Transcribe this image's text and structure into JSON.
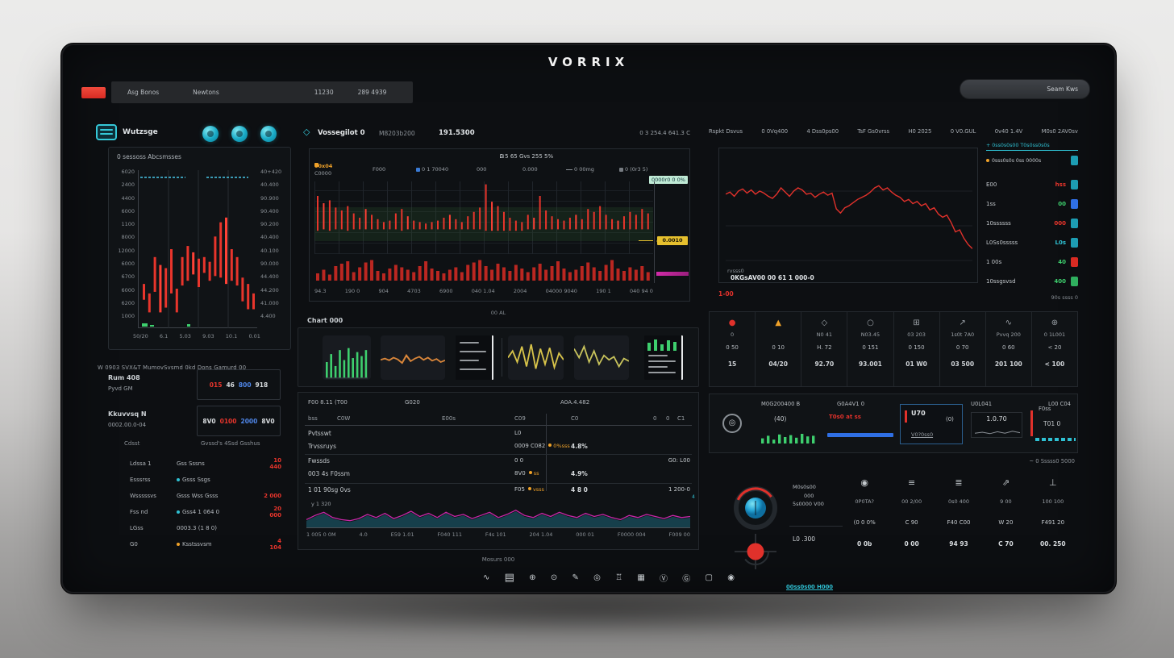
{
  "colors": {
    "red": "#e8352c",
    "bright_red": "#ff4136",
    "teal": "#2fc1d3",
    "blue": "#2f6fe4",
    "light_blue": "#4f86e8",
    "orange": "#f0a229",
    "yellow": "#e6c02e",
    "magenta": "#c827a8",
    "green": "#3ecf6e",
    "cyan_line": "#49c8e8"
  },
  "brand": "VORRIX",
  "topnav": {
    "items": [
      "Asg Bonos",
      "Newtons",
      "11230",
      "289 4939"
    ],
    "search": "Seam Kws"
  },
  "sidebar": {
    "title": "Wutzsge",
    "action_icons": [
      "pie-chart-icon",
      "clock-icon",
      "settings-icon"
    ],
    "panel_title": "0 sessoss Abcsmsses",
    "chart": {
      "type": "bar",
      "y_left": [
        "6020",
        "2400",
        "4400",
        "6000",
        "1100",
        "8000",
        "12000",
        "6000",
        "6700",
        "6000",
        "6200",
        "1000"
      ],
      "y_right": [
        "40+420",
        "40.400",
        "90.900",
        "90.400",
        "90.200",
        "40.400",
        "40.100",
        "90.000",
        "44.400",
        "44.200",
        "41.000",
        "4.400"
      ],
      "x": [
        "50/20",
        "6.1",
        "5.03",
        "9.03",
        "10.1",
        "0.01"
      ],
      "bars": [
        [
          72,
          10
        ],
        [
          78,
          12
        ],
        [
          55,
          22
        ],
        [
          60,
          30
        ],
        [
          62,
          25
        ],
        [
          50,
          28
        ],
        [
          75,
          15
        ],
        [
          55,
          18
        ],
        [
          48,
          22
        ],
        [
          52,
          14
        ],
        [
          56,
          18
        ],
        [
          55,
          10
        ],
        [
          58,
          12
        ],
        [
          42,
          25
        ],
        [
          33,
          35
        ],
        [
          30,
          42
        ],
        [
          50,
          20
        ],
        [
          55,
          18
        ],
        [
          68,
          15
        ],
        [
          72,
          16
        ],
        [
          78,
          10
        ]
      ]
    },
    "summary": "W 0903 SVX&T MumovSvsmd 0kd  Dons Gamurd 00",
    "stat_boxes": [
      {
        "label": "Rum 408",
        "sublabel": "Pyvd GM",
        "parts": [
          {
            "t": "015",
            "c": "red"
          },
          {
            "t": "46",
            "c": "bright"
          },
          {
            "t": "800",
            "c": "blue"
          },
          {
            "t": "918",
            "c": "bright"
          }
        ]
      },
      {
        "label": "Kkuvvsq N",
        "sublabel": "0002.00.0-04",
        "parts": [
          {
            "t": "8V0",
            "c": "bright"
          },
          {
            "t": "0100",
            "c": "red"
          },
          {
            "t": "2000",
            "c": "blue"
          },
          {
            "t": "8V0",
            "c": "bright"
          }
        ]
      }
    ],
    "list": {
      "col1": "Cdsst",
      "col2": "Gvssd's 4Ssd Gsshus",
      "rows": [
        {
          "label": "Ldssa 1",
          "dot": "",
          "mid": "Gss Sssns",
          "value": "10 440",
          "vc": "red"
        },
        {
          "label": "Esssrss",
          "dot": "teal",
          "mid": "Gsss Ssgs",
          "value": "",
          "vc": ""
        },
        {
          "label": "Wsssssvs",
          "dot": "",
          "mid": "Gsss Wss Gsss",
          "value": "2 000",
          "vc": "red"
        },
        {
          "label": "Fss nd",
          "dot": "teal",
          "mid": "Gss4 1 064 0",
          "value": "20 000",
          "vc": "red"
        },
        {
          "label": "LGss",
          "dot": "",
          "mid": "0003.3 (1 8 0)",
          "value": "",
          "vc": ""
        },
        {
          "label": "G0",
          "dot": "orange",
          "mid": "Ksstssvsm",
          "value": "4 104",
          "vc": "red"
        }
      ]
    }
  },
  "center": {
    "symbol": "Vossegilot 0",
    "code": "M8203b200",
    "price": "191.5300",
    "header_right": "0 3 254.4 641.3 C",
    "chart": {
      "type": "candlestick",
      "title_icon": "grid-icon",
      "title": "0 5 65 Gvs 255 5%",
      "legend": [
        {
          "label": "00x04",
          "sub": "C0000",
          "color": "#f0a229"
        },
        {
          "label": "F000"
        },
        {
          "label": "0 1 70040",
          "square": "#3a7bd5"
        },
        {
          "label": "000"
        },
        {
          "label": "0.000"
        },
        {
          "label": "0 00mg",
          "line": true
        },
        {
          "label": "0 (0r3 5)",
          "square": "#777c82"
        }
      ],
      "badge": "0000r0 0 0%",
      "price_tag": "0.0010",
      "x": [
        "94.3",
        "190 0",
        "904",
        "4703",
        "6900",
        "040 1.04",
        "2004",
        "04000 9040",
        "190 1",
        "040 94 0"
      ],
      "candles": [
        [
          20,
          48
        ],
        [
          30,
          36
        ],
        [
          26,
          42
        ],
        [
          36,
          30
        ],
        [
          40,
          26
        ],
        [
          34,
          34
        ],
        [
          44,
          22
        ],
        [
          50,
          16
        ],
        [
          38,
          28
        ],
        [
          46,
          20
        ],
        [
          52,
          14
        ],
        [
          56,
          10
        ],
        [
          54,
          12
        ],
        [
          44,
          22
        ],
        [
          38,
          30
        ],
        [
          48,
          18
        ],
        [
          54,
          12
        ],
        [
          56,
          10
        ],
        [
          58,
          8
        ],
        [
          56,
          10
        ],
        [
          54,
          12
        ],
        [
          50,
          16
        ],
        [
          46,
          20
        ],
        [
          52,
          14
        ],
        [
          56,
          10
        ],
        [
          48,
          18
        ],
        [
          42,
          24
        ],
        [
          36,
          30
        ],
        [
          4,
          64
        ],
        [
          28,
          40
        ],
        [
          34,
          34
        ],
        [
          42,
          26
        ],
        [
          50,
          18
        ],
        [
          54,
          14
        ],
        [
          56,
          12
        ],
        [
          46,
          20
        ],
        [
          50,
          16
        ],
        [
          20,
          46
        ],
        [
          40,
          26
        ],
        [
          48,
          18
        ],
        [
          52,
          14
        ],
        [
          54,
          12
        ],
        [
          50,
          16
        ],
        [
          46,
          20
        ],
        [
          52,
          14
        ],
        [
          38,
          28
        ],
        [
          42,
          24
        ],
        [
          34,
          32
        ],
        [
          46,
          20
        ],
        [
          52,
          14
        ],
        [
          54,
          12
        ],
        [
          48,
          18
        ],
        [
          42,
          24
        ],
        [
          46,
          20
        ],
        [
          38,
          28
        ],
        [
          44,
          22
        ]
      ],
      "volume": [
        30,
        45,
        25,
        60,
        70,
        80,
        35,
        55,
        75,
        85,
        40,
        30,
        50,
        65,
        55,
        45,
        35,
        60,
        80,
        50,
        40,
        30,
        45,
        55,
        35,
        65,
        75,
        85,
        60,
        45,
        70,
        55,
        40,
        65,
        50,
        35,
        55,
        70,
        45,
        60,
        80,
        50,
        35,
        45,
        60,
        75,
        55,
        40,
        65,
        85,
        50,
        40,
        55,
        45,
        60,
        35
      ]
    },
    "ml_label": "00 AL",
    "thumbs_title": "Chart 000",
    "thumbs": [
      {
        "name": "thumb-green-bars",
        "kind": "bars",
        "color": "#3ecf6e",
        "data": [
          40,
          60,
          30,
          70,
          45,
          75,
          50,
          65,
          55,
          70
        ]
      },
      {
        "name": "thumb-orange-line",
        "kind": "line",
        "color": "#d9863a",
        "data": [
          55,
          52,
          56,
          50,
          54,
          62,
          45,
          58,
          52,
          48,
          55,
          50,
          57,
          53,
          60,
          56
        ]
      },
      {
        "name": "thumb-report",
        "kind": "text"
      },
      {
        "name": "thumb-yellow-line",
        "kind": "line",
        "color": "#d8c44a",
        "data": [
          50,
          35,
          60,
          25,
          70,
          20,
          75,
          30,
          65,
          28,
          72,
          40,
          55
        ]
      },
      {
        "name": "thumb-olive-line",
        "kind": "line",
        "color": "#c9c45c",
        "data": [
          30,
          50,
          25,
          60,
          35,
          65,
          45,
          55,
          48,
          70,
          52,
          58
        ]
      },
      {
        "name": "thumb-mixed",
        "kind": "mixed",
        "color": "#3ecf6e",
        "data": [
          50,
          70,
          40,
          65,
          55
        ]
      }
    ],
    "table": {
      "sections": [
        "F00 8.11 (T00",
        "G020",
        "A0A.4.482"
      ],
      "cols": [
        "bss",
        "C0W",
        "E00s",
        "C09",
        "C0",
        "0",
        "0",
        "C1"
      ],
      "rows": [
        {
          "c1": "Pvtsswt",
          "c3": "L0",
          "c3b": "",
          "c4": "",
          "right": ""
        },
        {
          "c1": "Trvssruys",
          "c3": "0009 C082",
          "c3b": "0%sss",
          "c4": "4.8%",
          "right": ""
        },
        {
          "c1": "Fwssds",
          "c3": "0 0",
          "c3b": "",
          "c4": "",
          "right": "G0: L00"
        },
        {
          "c1": "003 4s F0ssm",
          "c3": "8V0",
          "c3b": "ss",
          "c4": "4.9%",
          "right": ""
        },
        {
          "c1": "1 01 90sg 0vs",
          "c3": "F05",
          "c3b": "vsss",
          "c4": "4 8 0",
          "right": "1 200-0"
        }
      ],
      "corner_mark": "4"
    },
    "area": {
      "type": "area",
      "label": "y 1 320",
      "x": [
        "1 005 0 0M",
        "4.0",
        "E59 1.01",
        "F040 111",
        "F4s 101",
        "204 1.04",
        "000 01",
        "F0000 004",
        "F009 00"
      ],
      "line": [
        35,
        55,
        70,
        45,
        35,
        30,
        40,
        60,
        45,
        65,
        40,
        55,
        75,
        50,
        65,
        45,
        70,
        50,
        60,
        40,
        55,
        70,
        45,
        60,
        80,
        55,
        45,
        65,
        50,
        70,
        55,
        45,
        65,
        50,
        60,
        45,
        35,
        55,
        45,
        60,
        50,
        40,
        55,
        45,
        50
      ]
    },
    "caption": "Mosurs 000"
  },
  "right": {
    "tabs": [
      "Rspkt Dsvus",
      "0 0Vq400",
      "4 Dss0ps00",
      "TsF Gs0vrss",
      "H0 2025",
      "0 V0.GUL",
      "0v40 1.4V",
      "M0s0 2AV0sv"
    ],
    "chart": {
      "type": "line",
      "label_small": "rvsss0",
      "label": "0KGsAV00 00 61 1 000-0",
      "series": [
        36,
        34,
        38,
        33,
        31,
        35,
        32,
        36,
        33,
        35,
        38,
        40,
        36,
        30,
        34,
        38,
        33,
        30,
        32,
        36,
        35,
        39,
        36,
        34,
        37,
        35,
        50,
        54,
        49,
        47,
        44,
        41,
        39,
        37,
        34,
        30,
        28,
        32,
        30,
        34,
        37,
        39,
        43,
        41,
        45,
        43,
        47,
        45,
        51,
        49,
        55,
        58,
        56,
        63,
        72,
        70,
        78,
        84,
        88
      ]
    },
    "below_chart": "1-00",
    "watchlist": {
      "header": "+ 0ss0s0s00 T0s0ss0s0s",
      "sub": {
        "text": "0sss0s0s 0ss 0000s",
        "badge": "teal"
      },
      "rows": [
        {
          "label": "E00",
          "value": "hss",
          "vc": "red",
          "badge": "teal"
        },
        {
          "label": "1ss",
          "value": "00",
          "vc": "green",
          "badge": "blue"
        },
        {
          "label": "10ssssss",
          "value": "000",
          "vc": "red",
          "badge": "teal"
        },
        {
          "label": "L0Ss0sssss",
          "value": "L0s",
          "vc": "teal",
          "badge": "teal"
        },
        {
          "label": "1 00s",
          "value": "40",
          "vc": "green",
          "badge": "red"
        },
        {
          "label": "10ssgsvsd",
          "value": "400",
          "vc": "green",
          "badge": "green"
        }
      ],
      "footer": "90s ssss 0"
    },
    "stats": [
      {
        "name": "alert-dot-icon",
        "glyph": "●",
        "gc": "#e0312b",
        "label": "0",
        "v1": "0 50",
        "v2": "15"
      },
      {
        "name": "flame-icon",
        "glyph": "▲",
        "gc": "#f0a229",
        "label": " ",
        "v1": "0 10",
        "v2": "04/20"
      },
      {
        "name": "diamond-icon",
        "glyph": "◇",
        "gc": "#9aa0a6",
        "label": "N0 41",
        "v1": "H. 72",
        "v2": "92.70"
      },
      {
        "name": "circle-icon",
        "glyph": "○",
        "gc": "#9aa0a6",
        "label": "N03.45",
        "v1": "0 151",
        "v2": "93.001"
      },
      {
        "name": "grid-icon",
        "glyph": "⊞",
        "gc": "#9aa0a6",
        "label": "03 203",
        "v1": "0 150",
        "v2": "01 W0"
      },
      {
        "name": "trend-icon",
        "glyph": "↗",
        "gc": "#9aa0a6",
        "label": "1s0t 7A0",
        "v1": "0 70",
        "v2": "03 500"
      },
      {
        "name": "wave-icon",
        "glyph": "∿",
        "gc": "#9aa0a6",
        "label": "Pvvq 200",
        "v1": "0 60",
        "v2": "201 100"
      },
      {
        "name": "globe-icon",
        "glyph": "⊕",
        "gc": "#9aa0a6",
        "label": "0 1L001",
        "v1": "< 20",
        "v2": "< 100"
      }
    ],
    "indicators": {
      "h1": "M0G200400 B",
      "h2": "G0A4V1 0",
      "h3": "U0L041",
      "h4": "L00 C04",
      "c1_value": "(40)",
      "c1_bars": [
        40,
        60,
        30,
        70,
        50,
        65,
        45,
        75,
        55,
        60
      ],
      "c2_alert": "T0s0 at ss",
      "c3": {
        "big": "U70",
        "par": "(0)",
        "sub": "V0?0ss0"
      },
      "c4_value": "1.0.70",
      "c4_spark": [
        60,
        50,
        65,
        45,
        60,
        40,
        55
      ],
      "c5_label": "F0ss",
      "c5_value": "T01 0"
    },
    "gauges": {
      "note": "~ 0 Sssss0 5000",
      "l1": "M0s0s00",
      "l2": "000",
      "l3": "5s0000 V00",
      "mid": "L0 .300",
      "link": "00ss0s00 H000",
      "cols": [
        {
          "name": "lens-icon",
          "glyph": "◉",
          "label": "0P0TA?",
          "v1": "(0 0 0%",
          "v2": "0 0b"
        },
        {
          "name": "sliders-icon",
          "glyph": "≡",
          "label": "00 2/00",
          "v1": "C 90",
          "v2": "0 00"
        },
        {
          "name": "layers-icon",
          "glyph": "≣",
          "label": "0s0 400",
          "v1": "F40 C00",
          "v2": "94 93"
        },
        {
          "name": "send-icon",
          "glyph": "⇗",
          "label": "9 00",
          "v1": "W 20",
          "v2": "C 70"
        },
        {
          "name": "ruler-icon",
          "glyph": "⊥",
          "label": "100 100",
          "v1": "F491 20",
          "v2": "00. 250"
        }
      ]
    }
  },
  "toolbar": [
    {
      "name": "chart-icon",
      "glyph": "∿"
    },
    {
      "name": "wallet-icon",
      "glyph": "▤"
    },
    {
      "name": "globe-icon",
      "glyph": "⊕"
    },
    {
      "name": "target-icon",
      "glyph": "⊙"
    },
    {
      "name": "pen-icon",
      "glyph": "✎"
    },
    {
      "name": "info-icon",
      "glyph": "◎"
    },
    {
      "name": "key-icon",
      "glyph": "♖"
    },
    {
      "name": "briefcase-icon",
      "glyph": "▦"
    },
    {
      "name": "check-circle-icon",
      "glyph": "Ⓥ"
    },
    {
      "name": "g-icon",
      "glyph": "Ⓖ"
    },
    {
      "name": "stop-icon",
      "glyph": "▢"
    },
    {
      "name": "record-icon",
      "glyph": "◉"
    }
  ]
}
